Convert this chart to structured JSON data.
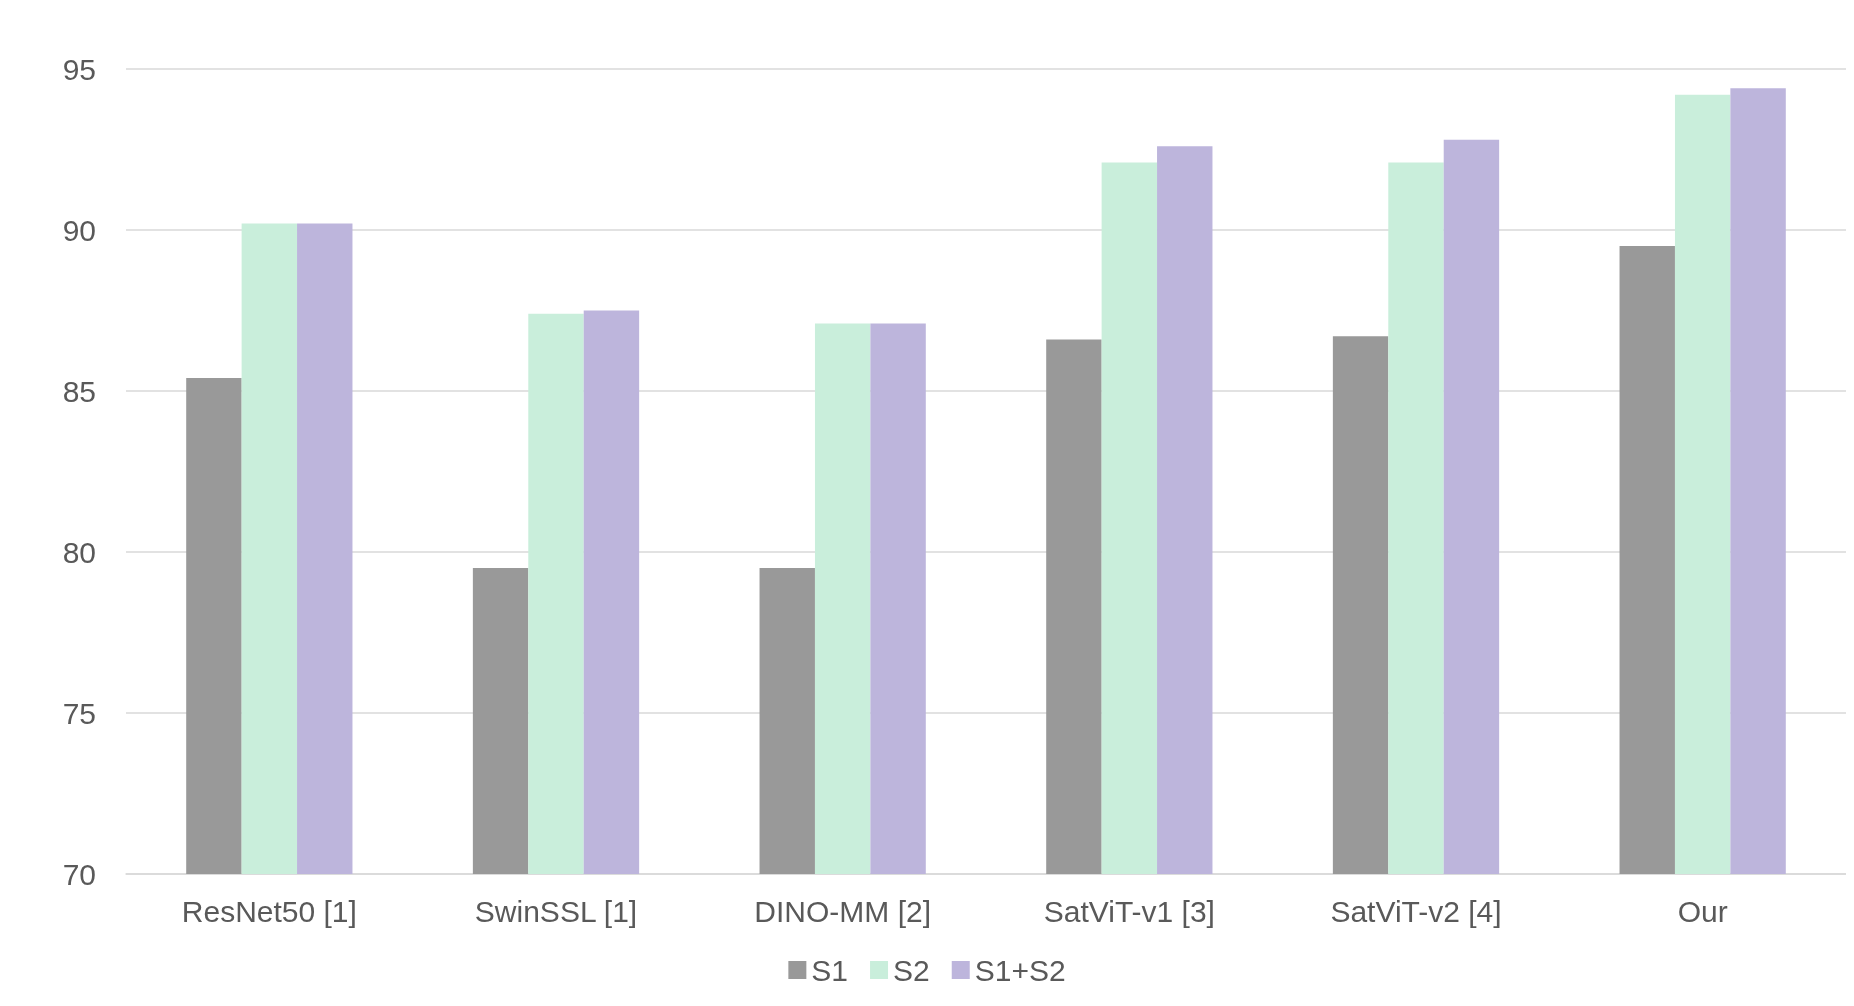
{
  "chart_data": {
    "type": "bar",
    "categories": [
      "ResNet50 [1]",
      "SwinSSL [1]",
      "DINO-MM [2]",
      "SatViT-v1 [3]",
      "SatViT-v2 [4]",
      "Our"
    ],
    "series": [
      {
        "name": "S1",
        "color": "#999999",
        "values": [
          85.4,
          79.5,
          79.5,
          86.6,
          86.7,
          89.5
        ]
      },
      {
        "name": "S2",
        "color": "#c9eedb",
        "values": [
          90.2,
          87.4,
          87.1,
          92.1,
          92.1,
          94.2
        ]
      },
      {
        "name": "S1+S2",
        "color": "#bdb5dc",
        "values": [
          90.2,
          87.5,
          87.1,
          92.6,
          92.8,
          94.4
        ]
      }
    ],
    "ylim": [
      70,
      95
    ],
    "yticks": [
      70,
      75,
      80,
      85,
      90,
      95
    ],
    "grid": "y",
    "legend": "bottom"
  }
}
